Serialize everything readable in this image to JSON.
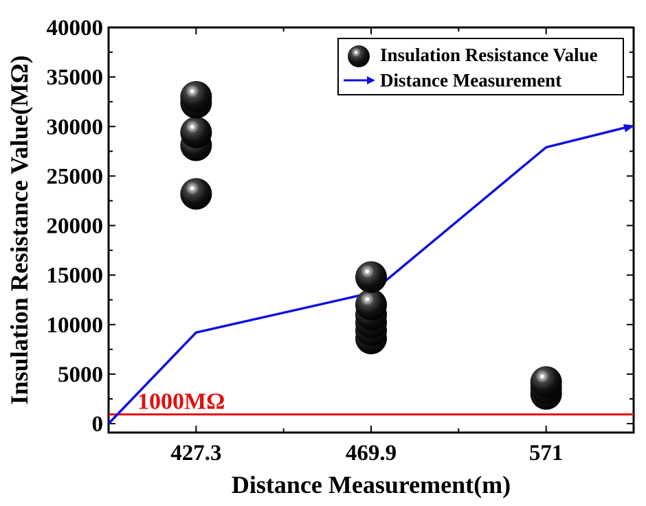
{
  "chart_data": {
    "type": "scatter",
    "xlabel": "Distance Measurement(m)",
    "ylabel": "Insulation Resistance Value(MΩ)",
    "ylim": [
      0,
      40000
    ],
    "yticks": [
      "0",
      "5000",
      "10000",
      "15000",
      "20000",
      "25000",
      "30000",
      "35000",
      "40000"
    ],
    "categories": [
      "427.3",
      "469.9",
      "571"
    ],
    "series": [
      {
        "name": "Insulation Resistance Value",
        "kind": "scatter",
        "points": [
          {
            "x": "427.3",
            "y": 33000
          },
          {
            "x": "427.3",
            "y": 32400
          },
          {
            "x": "427.3",
            "y": 29400
          },
          {
            "x": "427.3",
            "y": 28100
          },
          {
            "x": "427.3",
            "y": 23200
          },
          {
            "x": "469.9",
            "y": 14800
          },
          {
            "x": "469.9",
            "y": 12000
          },
          {
            "x": "469.9",
            "y": 11000
          },
          {
            "x": "469.9",
            "y": 10200
          },
          {
            "x": "469.9",
            "y": 9400
          },
          {
            "x": "469.9",
            "y": 8600
          },
          {
            "x": "571",
            "y": 4200
          },
          {
            "x": "571",
            "y": 3600
          },
          {
            "x": "571",
            "y": 3000
          }
        ],
        "color": "#000000"
      },
      {
        "name": "Distance Measurement",
        "kind": "line-arrow",
        "points": [
          {
            "x": 0.0,
            "y": 0
          },
          {
            "x": 1.0,
            "y": 9200
          },
          {
            "x": 3.0,
            "y": 13200
          },
          {
            "x": 5.0,
            "y": 27900
          },
          {
            "x": 6.0,
            "y": 30100
          }
        ],
        "color": "#1010e0"
      }
    ],
    "threshold": {
      "label": "1000MΩ",
      "y": 1000,
      "color": "#e01010"
    },
    "legend": {
      "position": "top-right",
      "entries": [
        "Insulation Resistance Value",
        "Distance Measurement"
      ]
    },
    "grid": false
  }
}
